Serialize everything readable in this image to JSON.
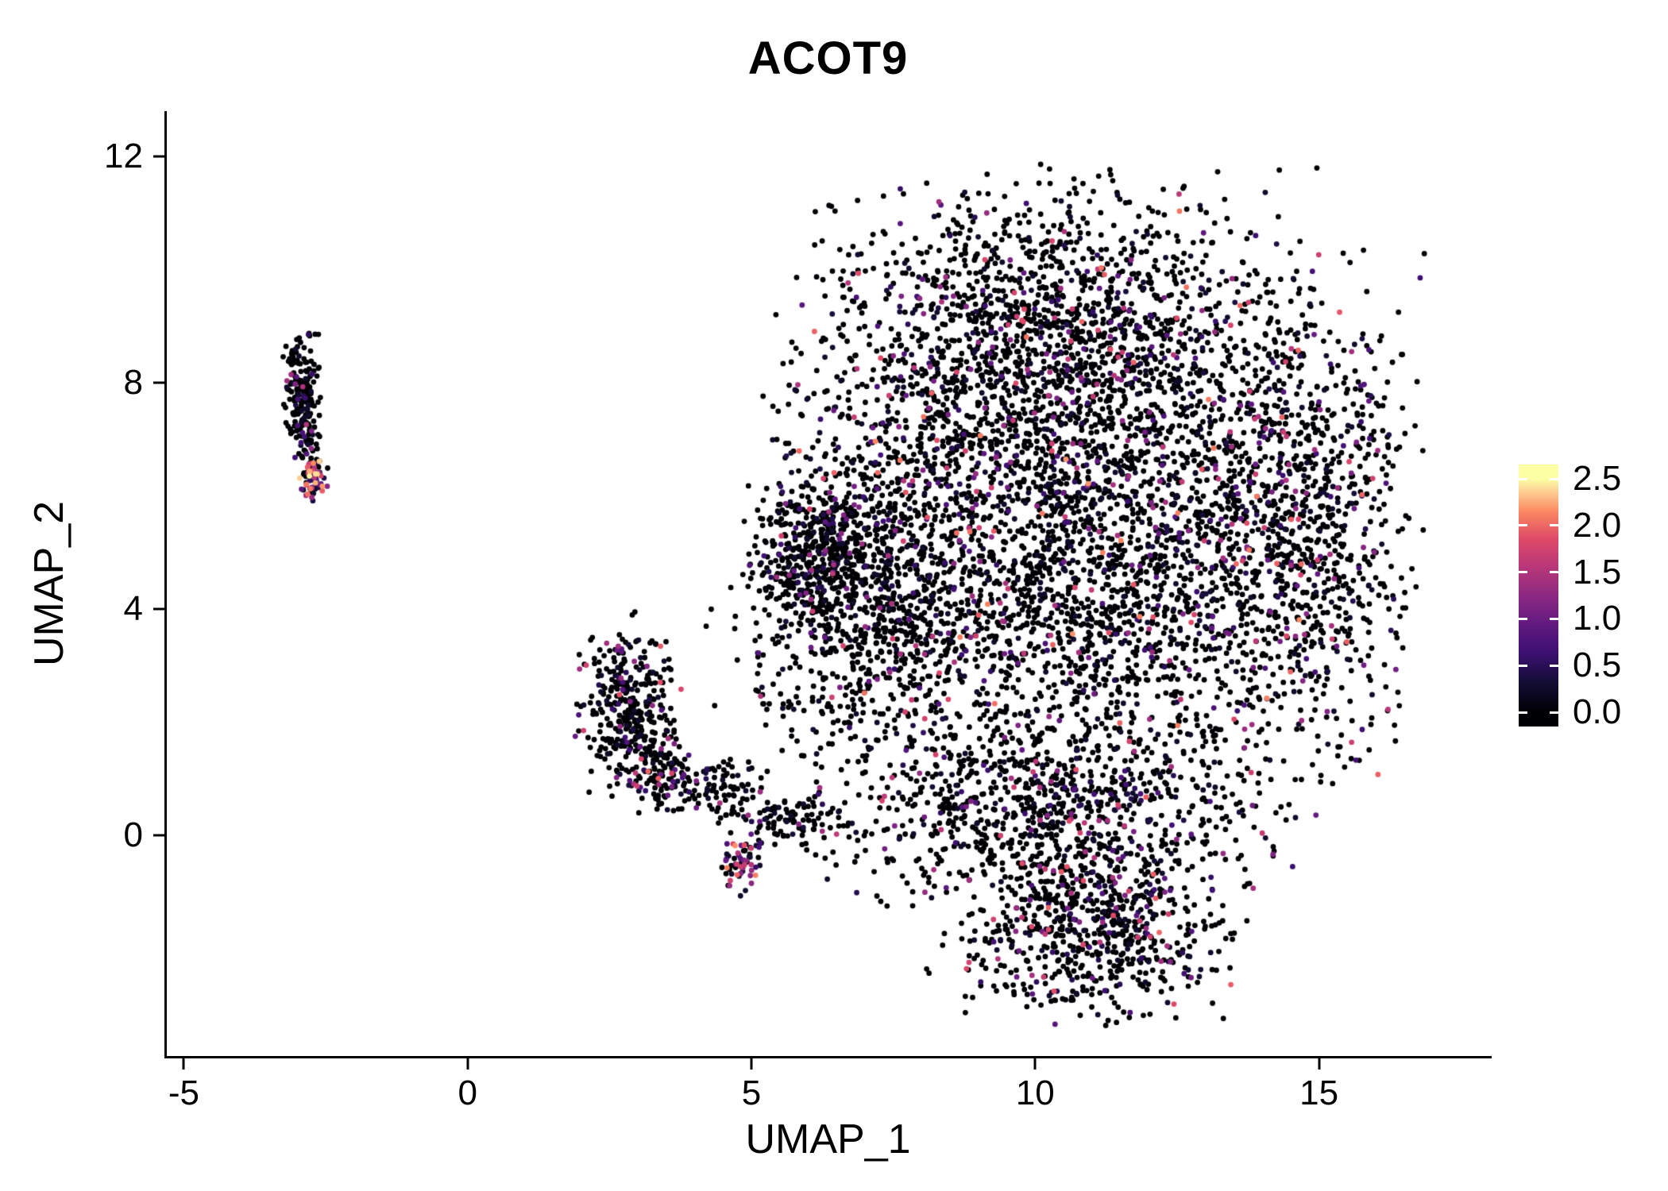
{
  "chart_data": {
    "type": "scatter",
    "title": "ACOT9",
    "xlabel": "UMAP_1",
    "ylabel": "UMAP_2",
    "xlim": [
      -5.3,
      18.0
    ],
    "ylim": [
      -3.9,
      12.8
    ],
    "grid": false,
    "background": "#ffffff",
    "axis_color": "#000000",
    "point_radius": 3.4,
    "seed": 1234567,
    "xticks": [
      {
        "v": -5,
        "label": "-5"
      },
      {
        "v": 0,
        "label": "0"
      },
      {
        "v": 5,
        "label": "5"
      },
      {
        "v": 10,
        "label": "10"
      },
      {
        "v": 15,
        "label": "15"
      }
    ],
    "yticks": [
      {
        "v": 0,
        "label": "0"
      },
      {
        "v": 4,
        "label": "4"
      },
      {
        "v": 8,
        "label": "8"
      },
      {
        "v": 12,
        "label": "12"
      }
    ],
    "colorbar": {
      "min": 0,
      "max": 2.5,
      "legend_position": "right",
      "ticks": [
        {
          "v": 2.5,
          "label": "2.5"
        },
        {
          "v": 2.0,
          "label": "2.0"
        },
        {
          "v": 1.5,
          "label": "1.5"
        },
        {
          "v": 1.0,
          "label": "1.0"
        },
        {
          "v": 0.5,
          "label": "0.5"
        },
        {
          "v": 0.0,
          "label": "0.0"
        }
      ]
    },
    "colormap": [
      {
        "t": 0.0,
        "c": "#000004"
      },
      {
        "t": 0.13,
        "c": "#140e36"
      },
      {
        "t": 0.25,
        "c": "#3b0f70"
      },
      {
        "t": 0.38,
        "c": "#641a80"
      },
      {
        "t": 0.5,
        "c": "#8c2981"
      },
      {
        "t": 0.62,
        "c": "#b73779"
      },
      {
        "t": 0.74,
        "c": "#de4968"
      },
      {
        "t": 0.86,
        "c": "#fb8861"
      },
      {
        "t": 0.95,
        "c": "#fed395"
      },
      {
        "t": 1.0,
        "c": "#fcffa4"
      }
    ],
    "clusters": [
      {
        "name": "topleft-streak",
        "cx": -2.95,
        "cy": 7.95,
        "sx": 0.17,
        "sy": 0.42,
        "n": 160,
        "zero": 0.82,
        "emax": 1.6,
        "pow": 2.0
      },
      {
        "name": "topleft-mid",
        "cx": -2.82,
        "cy": 7.0,
        "sx": 0.12,
        "sy": 0.3,
        "n": 50,
        "zero": 0.8,
        "emax": 1.4,
        "pow": 2.0
      },
      {
        "name": "topleft-hotspot",
        "cx": -2.73,
        "cy": 6.32,
        "sx": 0.13,
        "sy": 0.2,
        "n": 65,
        "zero": 0.3,
        "emax": 2.5,
        "pow": 1.2
      },
      {
        "name": "midleft-main",
        "cx": 2.85,
        "cy": 2.3,
        "sx": 0.42,
        "sy": 0.72,
        "n": 340,
        "zero": 0.8,
        "emax": 2.0,
        "pow": 2.0
      },
      {
        "name": "midleft-tail",
        "cx": 3.35,
        "cy": 1.15,
        "sx": 0.3,
        "sy": 0.35,
        "n": 110,
        "zero": 0.72,
        "emax": 2.0,
        "pow": 1.8
      },
      {
        "name": "midleft-arm1",
        "cx": 4.4,
        "cy": 0.85,
        "sx": 0.5,
        "sy": 0.3,
        "n": 100,
        "zero": 0.8,
        "emax": 1.6,
        "pow": 2.0
      },
      {
        "name": "midleft-arm2",
        "cx": 5.7,
        "cy": 0.2,
        "sx": 0.55,
        "sy": 0.28,
        "n": 110,
        "zero": 0.78,
        "emax": 1.8,
        "pow": 2.0
      },
      {
        "name": "small-hot-blob",
        "cx": 4.82,
        "cy": -0.5,
        "sx": 0.2,
        "sy": 0.26,
        "n": 55,
        "zero": 0.3,
        "emax": 2.3,
        "pow": 1.2
      },
      {
        "name": "left-dense-clump",
        "cx": 6.1,
        "cy": 4.9,
        "sx": 0.55,
        "sy": 0.7,
        "n": 380,
        "zero": 0.86,
        "emax": 1.8,
        "pow": 2.2
      },
      {
        "name": "sparse-mid",
        "cx": 6.2,
        "cy": 3.1,
        "sx": 0.9,
        "sy": 0.85,
        "n": 110,
        "zero": 0.85,
        "emax": 1.5,
        "pow": 2.0
      },
      {
        "name": "main-upper",
        "cx": 10.3,
        "cy": 8.8,
        "sx": 2.05,
        "sy": 1.35,
        "n": 1650,
        "zero": 0.82,
        "emax": 2.1,
        "pow": 2.0
      },
      {
        "name": "main-core",
        "cx": 10.8,
        "cy": 4.9,
        "sx": 2.5,
        "sy": 2.0,
        "n": 2750,
        "zero": 0.8,
        "emax": 2.2,
        "pow": 2.0
      },
      {
        "name": "main-left",
        "cx": 7.3,
        "cy": 4.6,
        "sx": 1.0,
        "sy": 1.6,
        "n": 620,
        "zero": 0.84,
        "emax": 1.8,
        "pow": 2.0
      },
      {
        "name": "main-right",
        "cx": 14.7,
        "cy": 5.7,
        "sx": 0.95,
        "sy": 2.1,
        "n": 760,
        "zero": 0.78,
        "emax": 2.0,
        "pow": 2.0
      },
      {
        "name": "lower-band",
        "cx": 10.4,
        "cy": 0.5,
        "sx": 1.85,
        "sy": 0.8,
        "n": 850,
        "zero": 0.78,
        "emax": 2.0,
        "pow": 2.0
      },
      {
        "name": "bottom-lobe",
        "cx": 10.9,
        "cy": -1.65,
        "sx": 1.25,
        "sy": 0.75,
        "n": 680,
        "zero": 0.8,
        "emax": 2.0,
        "pow": 2.0
      }
    ]
  }
}
